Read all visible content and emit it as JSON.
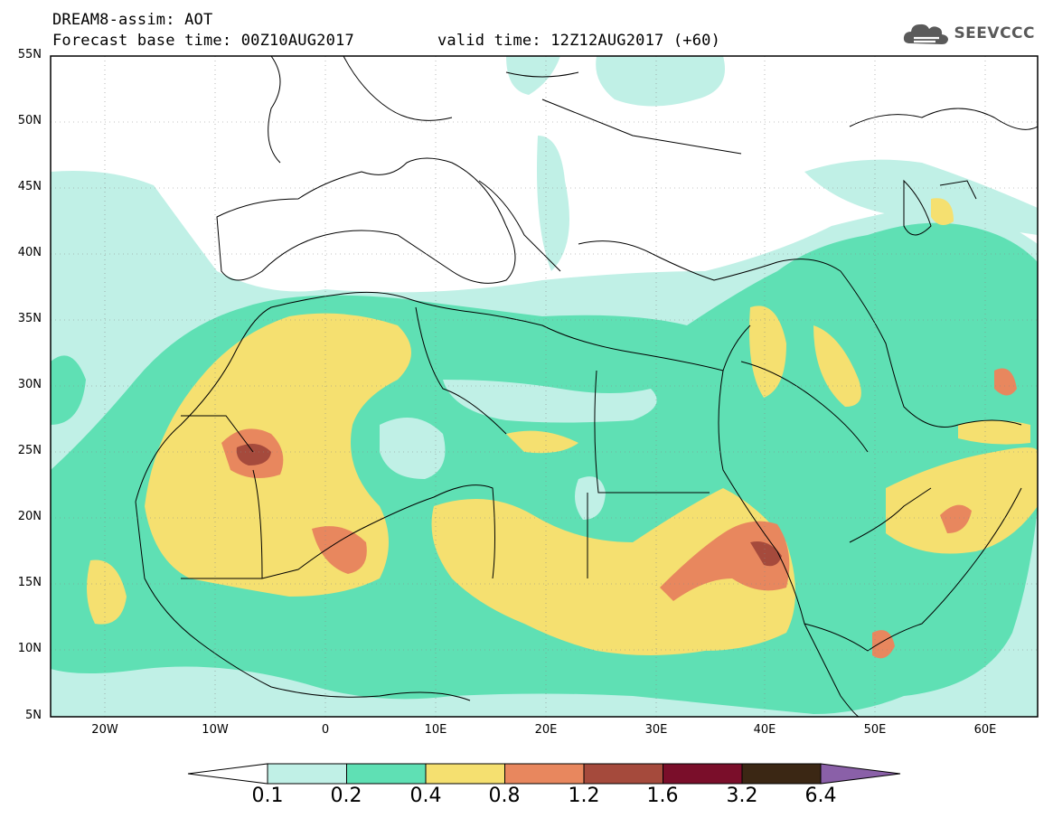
{
  "header": {
    "line1": "DREAM8-assim: AOT",
    "line2": "Forecast base time: 00Z10AUG2017",
    "line2b": "valid time: 12Z12AUG2017 (+60)",
    "logo_text": "SEEVCCC",
    "logo_icon": "cloud-icon"
  },
  "map": {
    "lat_ticks": [
      "55N",
      "50N",
      "45N",
      "40N",
      "35N",
      "30N",
      "25N",
      "20N",
      "15N",
      "10N",
      "5N"
    ],
    "lon_ticks": [
      "20W",
      "10W",
      "0",
      "10E",
      "20E",
      "30E",
      "40E",
      "50E",
      "60E"
    ],
    "lon_range": [
      -25,
      65
    ],
    "lat_range": [
      5,
      55
    ]
  },
  "colorbar": {
    "thresholds": [
      "0.1",
      "0.2",
      "0.4",
      "0.8",
      "1.2",
      "1.6",
      "3.2",
      "6.4"
    ],
    "colors": [
      "#ffffff",
      "#c0f0e6",
      "#5fe0b4",
      "#f5e070",
      "#e8875e",
      "#a54a3c",
      "#7a0e2a",
      "#3b2714",
      "#8a60a8"
    ]
  }
}
